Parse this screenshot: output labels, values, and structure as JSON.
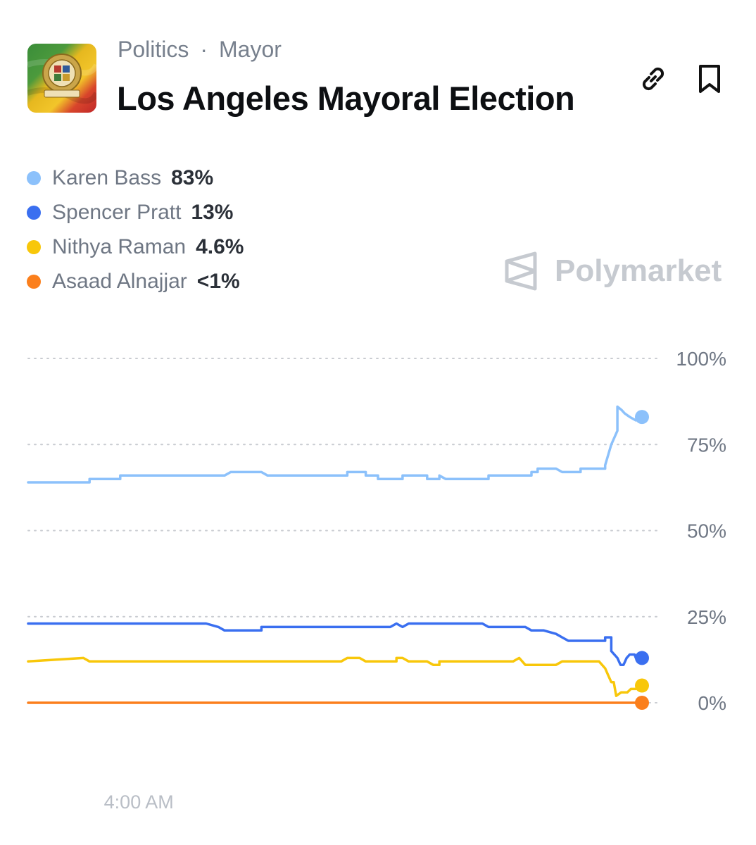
{
  "header": {
    "breadcrumb": [
      "Politics",
      "Mayor"
    ],
    "breadcrumb_separator": "·",
    "title": "Los Angeles Mayoral Election",
    "logo_icon": "city-of-los-angeles-seal-icon",
    "link_icon": "link-icon",
    "bookmark_icon": "bookmark-icon"
  },
  "legend": [
    {
      "name": "Karen Bass",
      "value": "83%",
      "color": "#8cc1fb"
    },
    {
      "name": "Spencer Pratt",
      "value": "13%",
      "color": "#3a6ff0"
    },
    {
      "name": "Nithya Raman",
      "value": "4.6%",
      "color": "#f8c70a"
    },
    {
      "name": "Asaad Alnajjar",
      "value": "<1%",
      "color": "#fb7f1c"
    }
  ],
  "watermark": "Polymarket",
  "chart_data": {
    "type": "line",
    "ylim": [
      0,
      100
    ],
    "y_ticks": [
      "100%",
      "75%",
      "50%",
      "25%",
      "0%"
    ],
    "y_tick_values": [
      100,
      75,
      50,
      25,
      0
    ],
    "x_tick_labels": [
      "4:00 AM"
    ],
    "x_tick_positions": [
      10
    ],
    "grid": true,
    "series": [
      {
        "name": "Karen Bass",
        "color": "#8cc1fb",
        "points": [
          [
            0,
            64
          ],
          [
            10,
            64
          ],
          [
            10,
            65
          ],
          [
            15,
            65
          ],
          [
            15,
            66
          ],
          [
            32,
            66
          ],
          [
            33,
            67
          ],
          [
            38,
            67
          ],
          [
            39,
            66
          ],
          [
            45,
            66
          ],
          [
            45,
            66
          ],
          [
            52,
            66
          ],
          [
            52,
            67
          ],
          [
            55,
            67
          ],
          [
            55,
            66
          ],
          [
            57,
            66
          ],
          [
            57,
            65
          ],
          [
            61,
            65
          ],
          [
            61,
            66
          ],
          [
            65,
            66
          ],
          [
            65,
            65
          ],
          [
            67,
            65
          ],
          [
            67,
            66
          ],
          [
            68,
            65
          ],
          [
            75,
            65
          ],
          [
            75,
            66
          ],
          [
            82,
            66
          ],
          [
            82,
            67
          ],
          [
            83,
            67
          ],
          [
            83,
            68
          ],
          [
            86,
            68
          ],
          [
            87,
            67
          ],
          [
            90,
            67
          ],
          [
            90,
            68
          ],
          [
            94,
            68
          ],
          [
            94,
            69
          ],
          [
            95,
            75
          ],
          [
            96,
            79
          ],
          [
            96,
            86
          ],
          [
            96.7,
            85
          ],
          [
            97.2,
            84
          ],
          [
            98,
            83
          ],
          [
            99,
            82
          ],
          [
            100,
            83
          ]
        ]
      },
      {
        "name": "Spencer Pratt",
        "color": "#3a6ff0",
        "points": [
          [
            0,
            23
          ],
          [
            29,
            23
          ],
          [
            31,
            22
          ],
          [
            32,
            21
          ],
          [
            38,
            21
          ],
          [
            38,
            22
          ],
          [
            59,
            22
          ],
          [
            60,
            23
          ],
          [
            61,
            22
          ],
          [
            62,
            23
          ],
          [
            74,
            23
          ],
          [
            75,
            22
          ],
          [
            81,
            22
          ],
          [
            82,
            21
          ],
          [
            84,
            21
          ],
          [
            86,
            20
          ],
          [
            87,
            19
          ],
          [
            88,
            18
          ],
          [
            94,
            18
          ],
          [
            94,
            19
          ],
          [
            95,
            19
          ],
          [
            95,
            15
          ],
          [
            96,
            13
          ],
          [
            96.5,
            11
          ],
          [
            97,
            11
          ],
          [
            97.5,
            13
          ],
          [
            98,
            14
          ],
          [
            98.8,
            14
          ],
          [
            99,
            13
          ],
          [
            100,
            13
          ]
        ]
      },
      {
        "name": "Nithya Raman",
        "color": "#f8c70a",
        "points": [
          [
            0,
            12
          ],
          [
            9,
            13
          ],
          [
            10,
            12
          ],
          [
            51,
            12
          ],
          [
            52,
            13
          ],
          [
            54,
            13
          ],
          [
            55,
            12
          ],
          [
            60,
            12
          ],
          [
            60,
            13
          ],
          [
            61,
            13
          ],
          [
            62,
            12
          ],
          [
            65,
            12
          ],
          [
            66,
            11
          ],
          [
            67,
            11
          ],
          [
            67,
            12
          ],
          [
            79,
            12
          ],
          [
            80,
            13
          ],
          [
            81,
            11
          ],
          [
            86,
            11
          ],
          [
            87,
            12
          ],
          [
            93,
            12
          ],
          [
            94,
            10
          ],
          [
            94.5,
            8
          ],
          [
            95,
            6
          ],
          [
            95.4,
            6
          ],
          [
            95.8,
            2
          ],
          [
            96.6,
            3
          ],
          [
            97.6,
            3
          ],
          [
            98.2,
            4
          ],
          [
            99,
            4
          ],
          [
            100,
            5
          ]
        ]
      },
      {
        "name": "Asaad Alnajjar",
        "color": "#fb7f1c",
        "points": [
          [
            0,
            0
          ],
          [
            100,
            0
          ]
        ]
      }
    ]
  }
}
